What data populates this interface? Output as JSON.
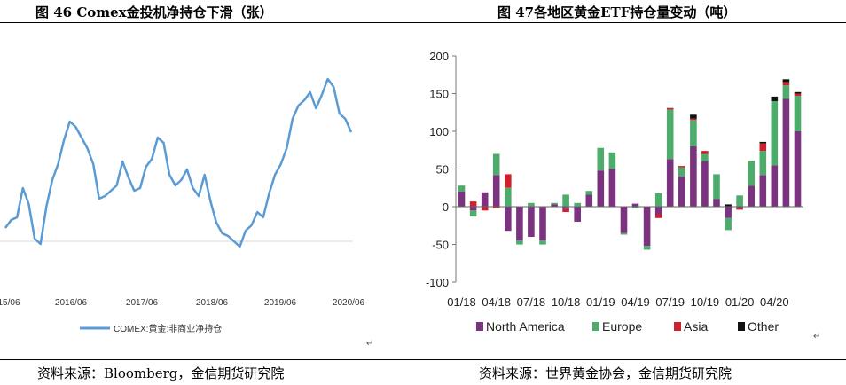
{
  "left_title": {
    "text": "图 46 Comex金投机净持仓下滑（张）"
  },
  "right_title": {
    "text": "图 47各地区黄金ETF持仓量变动（吨）"
  },
  "left_source": "资料来源：Bloomberg，金信期货研究院",
  "right_source": "资料来源：世界黄金协会，金信期货研究院",
  "para_mark": "↵",
  "chart_data": [
    {
      "type": "line",
      "title": "",
      "xlabel": "",
      "ylabel": "",
      "x_tick_labels": [
        "15/06",
        "2016/06",
        "2017/06",
        "2018/06",
        "2019/06",
        "2020/06"
      ],
      "legend": {
        "label": "COMEX:黄金:非商业净持仓",
        "color": "#5b9bd5",
        "position": "bottom"
      },
      "grid": false,
      "series": [
        {
          "name": "COMEX:黄金:非商业净持仓",
          "color": "#5b9bd5",
          "x": [
            "2015-06",
            "2015-07",
            "2015-08",
            "2015-09",
            "2015-10",
            "2015-11",
            "2015-12",
            "2016-01",
            "2016-02",
            "2016-03",
            "2016-04",
            "2016-05",
            "2016-06",
            "2016-07",
            "2016-08",
            "2016-09",
            "2016-10",
            "2016-11",
            "2016-12",
            "2017-01",
            "2017-02",
            "2017-03",
            "2017-04",
            "2017-05",
            "2017-06",
            "2017-07",
            "2017-08",
            "2017-09",
            "2017-10",
            "2017-11",
            "2017-12",
            "2018-01",
            "2018-02",
            "2018-03",
            "2018-04",
            "2018-05",
            "2018-06",
            "2018-07",
            "2018-08",
            "2018-09",
            "2018-10",
            "2018-11",
            "2018-12",
            "2019-01",
            "2019-02",
            "2019-03",
            "2019-04",
            "2019-05",
            "2019-06",
            "2019-07",
            "2019-08",
            "2019-09",
            "2019-10",
            "2019-11",
            "2019-12",
            "2020-01",
            "2020-02",
            "2020-03",
            "2020-04",
            "2020-05"
          ],
          "values": [
            12,
            18,
            20,
            42,
            30,
            4,
            0,
            28,
            48,
            60,
            78,
            92,
            88,
            80,
            72,
            60,
            34,
            36,
            40,
            44,
            62,
            50,
            40,
            42,
            58,
            64,
            80,
            76,
            52,
            44,
            48,
            56,
            42,
            36,
            52,
            32,
            16,
            8,
            6,
            2,
            -2,
            10,
            14,
            24,
            20,
            38,
            52,
            60,
            72,
            94,
            104,
            108,
            114,
            102,
            112,
            124,
            118,
            98,
            94,
            84
          ]
        }
      ]
    },
    {
      "type": "bar",
      "stacked": true,
      "title": "",
      "xlabel": "",
      "ylabel": "",
      "ylim": [
        -100,
        200
      ],
      "y_ticks": [
        -100,
        -50,
        0,
        50,
        100,
        150,
        200
      ],
      "grid": false,
      "legend_position": "bottom",
      "categories": [
        "01/18",
        "02/18",
        "03/18",
        "04/18",
        "05/18",
        "06/18",
        "07/18",
        "08/18",
        "09/18",
        "10/18",
        "11/18",
        "12/18",
        "01/19",
        "02/19",
        "03/19",
        "04/19",
        "05/19",
        "06/19",
        "07/19",
        "08/19",
        "09/19",
        "10/19",
        "11/19",
        "12/19",
        "01/20",
        "02/20",
        "03/20",
        "04/20",
        "05/20",
        "06/20"
      ],
      "x_tick_labels": [
        "01/18",
        "04/18",
        "07/18",
        "10/18",
        "01/19",
        "04/19",
        "07/19",
        "10/19",
        "01/20",
        "04/20"
      ],
      "series": [
        {
          "name": "North America",
          "color": "#7b3380",
          "values": [
            20,
            -5,
            19,
            42,
            -32,
            -45,
            -40,
            -45,
            3,
            -3,
            -20,
            16,
            48,
            50,
            -35,
            4,
            -52,
            -10,
            63,
            40,
            80,
            60,
            10,
            -15,
            -2,
            28,
            42,
            55,
            143,
            100
          ]
        },
        {
          "name": "Europe",
          "color": "#4dac6b",
          "values": [
            8,
            -8,
            0,
            28,
            25,
            -5,
            5,
            -5,
            2,
            16,
            5,
            5,
            30,
            22,
            -2,
            -2,
            -5,
            18,
            66,
            12,
            35,
            10,
            33,
            -16,
            15,
            33,
            32,
            85,
            18,
            47
          ]
        },
        {
          "name": "Asia",
          "color": "#d0202e",
          "values": [
            0,
            7,
            -5,
            -2,
            18,
            0,
            0,
            0,
            0,
            -4,
            0,
            0,
            0,
            0,
            0,
            0,
            0,
            -5,
            2,
            2,
            2,
            4,
            0,
            0,
            -2,
            0,
            10,
            0,
            4,
            3
          ]
        },
        {
          "name": "Other",
          "color": "#111111",
          "values": [
            0,
            0,
            0,
            0,
            0,
            0,
            0,
            0,
            0,
            0,
            0,
            0,
            0,
            0,
            0,
            0,
            0,
            0,
            0,
            0,
            5,
            0,
            0,
            3,
            0,
            0,
            2,
            6,
            4,
            2
          ]
        }
      ]
    }
  ]
}
